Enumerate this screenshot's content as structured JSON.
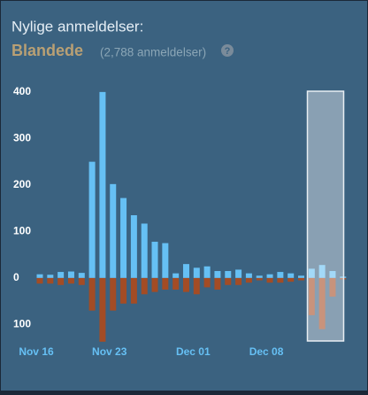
{
  "header": {
    "title": "Nylige anmeldelser:",
    "rating": "Blandede",
    "count": "(2,788 anmeldelser)",
    "help": "?"
  },
  "chart_data": {
    "type": "bar",
    "categories": [
      "Nov 16",
      null,
      null,
      null,
      null,
      null,
      null,
      "Nov 23",
      null,
      null,
      null,
      null,
      null,
      null,
      null,
      "Dec 01",
      null,
      null,
      null,
      null,
      null,
      null,
      "Dec 08",
      null,
      null,
      null,
      null,
      null,
      null,
      null
    ],
    "series": [
      {
        "color": "#66c0f4",
        "values": [
          8,
          7,
          13,
          14,
          11,
          250,
          400,
          202,
          172,
          135,
          117,
          78,
          75,
          10,
          30,
          22,
          25,
          15,
          15,
          18,
          10,
          5,
          8,
          13,
          10,
          5,
          20,
          28,
          15,
          3
        ]
      },
      {
        "color": "#a34c25",
        "values": [
          -12,
          -12,
          -15,
          -12,
          -15,
          -70,
          -137,
          -70,
          -55,
          -55,
          -35,
          -30,
          -25,
          -25,
          -30,
          -35,
          -20,
          -25,
          -15,
          -15,
          -10,
          -5,
          -10,
          -10,
          -8,
          -5,
          -80,
          -110,
          -40,
          -3
        ]
      }
    ],
    "ylim": [
      -140,
      415
    ],
    "yticks": [
      {
        "value": -100,
        "label": "100"
      },
      0,
      100,
      200,
      300,
      400
    ],
    "grid": false
  }
}
